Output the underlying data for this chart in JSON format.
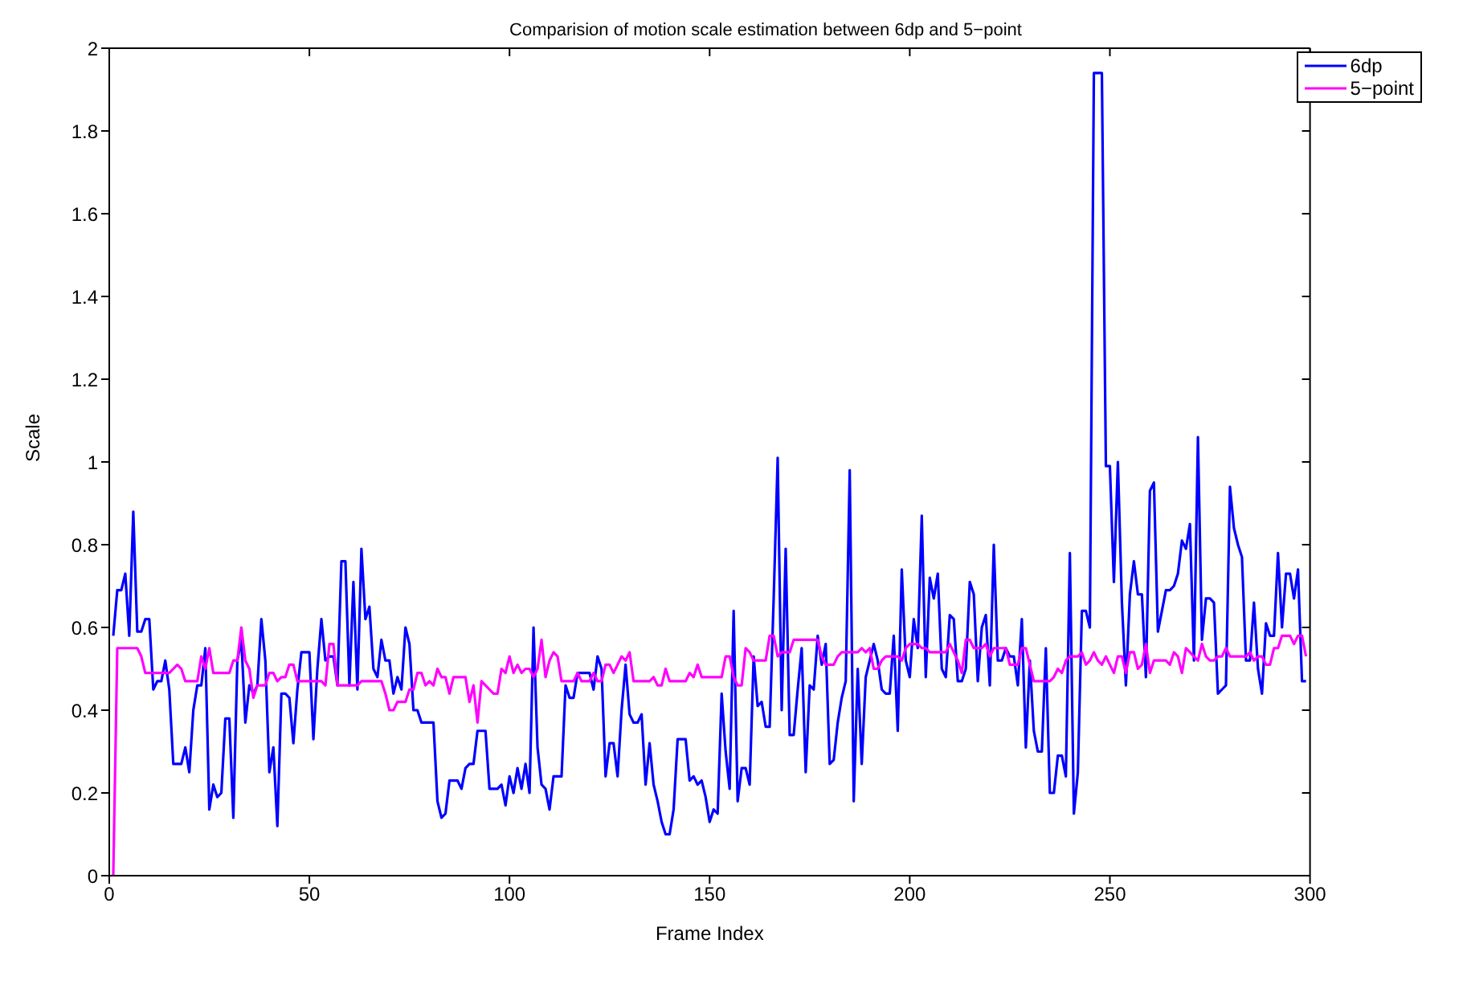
{
  "chart_data": {
    "type": "line",
    "title": "Comparision of motion scale estimation between 6dp and 5−point",
    "xlabel": "Frame Index",
    "ylabel": "Scale",
    "xlim": [
      0,
      300
    ],
    "xticks": [
      0,
      50,
      100,
      150,
      200,
      250,
      300
    ],
    "ylim": [
      0,
      2
    ],
    "yticks": [
      0,
      0.2,
      0.4,
      0.6,
      0.8,
      1,
      1.2,
      1.4,
      1.6,
      1.8,
      2
    ],
    "legend": "top right",
    "marker": "none",
    "line_style": "solid",
    "x": [
      1,
      2,
      3,
      4,
      5,
      6,
      7,
      8,
      9,
      10,
      11,
      12,
      13,
      14,
      15,
      16,
      17,
      18,
      19,
      20,
      21,
      22,
      23,
      24,
      25,
      26,
      27,
      28,
      29,
      30,
      31,
      32,
      33,
      34,
      35,
      36,
      37,
      38,
      39,
      40,
      41,
      42,
      43,
      44,
      45,
      46,
      47,
      48,
      49,
      50,
      51,
      52,
      53,
      54,
      55,
      56,
      57,
      58,
      59,
      60,
      61,
      62,
      63,
      64,
      65,
      66,
      67,
      68,
      69,
      70,
      71,
      72,
      73,
      74,
      75,
      76,
      77,
      78,
      79,
      80,
      81,
      82,
      83,
      84,
      85,
      86,
      87,
      88,
      89,
      90,
      91,
      92,
      93,
      94,
      95,
      96,
      97,
      98,
      99,
      100,
      101,
      102,
      103,
      104,
      105,
      106,
      107,
      108,
      109,
      110,
      111,
      112,
      113,
      114,
      115,
      116,
      117,
      118,
      119,
      120,
      121,
      122,
      123,
      124,
      125,
      126,
      127,
      128,
      129,
      130,
      131,
      132,
      133,
      134,
      135,
      136,
      137,
      138,
      139,
      140,
      141,
      142,
      143,
      144,
      145,
      146,
      147,
      148,
      149,
      150,
      151,
      152,
      153,
      154,
      155,
      156,
      157,
      158,
      159,
      160,
      161,
      162,
      163,
      164,
      165,
      166,
      167,
      168,
      169,
      170,
      171,
      172,
      173,
      174,
      175,
      176,
      177,
      178,
      179,
      180,
      181,
      182,
      183,
      184,
      185,
      186,
      187,
      188,
      189,
      190,
      191,
      192,
      193,
      194,
      195,
      196,
      197,
      198,
      199,
      200,
      201,
      202,
      203,
      204,
      205,
      206,
      207,
      208,
      209,
      210,
      211,
      212,
      213,
      214,
      215,
      216,
      217,
      218,
      219,
      220,
      221,
      222,
      223,
      224,
      225,
      226,
      227,
      228,
      229,
      230,
      231,
      232,
      233,
      234,
      235,
      236,
      237,
      238,
      239,
      240,
      241,
      242,
      243,
      244,
      245,
      246,
      247,
      248,
      249,
      250,
      251,
      252,
      253,
      254,
      255,
      256,
      257,
      258,
      259,
      260,
      261,
      262,
      263,
      264,
      265,
      266,
      267,
      268,
      269,
      270,
      271,
      272,
      273,
      274,
      275,
      276,
      277,
      278,
      279,
      280,
      281,
      282,
      283,
      284,
      285,
      286,
      287,
      288,
      289,
      290,
      291,
      292,
      293,
      294,
      295,
      296,
      297,
      298,
      299
    ],
    "series": [
      {
        "name": "6dp",
        "color": "#0000ff",
        "values": [
          0.58,
          0.69,
          0.69,
          0.73,
          0.58,
          0.88,
          0.59,
          0.59,
          0.62,
          0.62,
          0.45,
          0.47,
          0.47,
          0.52,
          0.45,
          0.27,
          0.27,
          0.27,
          0.31,
          0.25,
          0.4,
          0.46,
          0.46,
          0.55,
          0.16,
          0.22,
          0.19,
          0.2,
          0.38,
          0.38,
          0.14,
          0.52,
          0.57,
          0.37,
          0.46,
          0.44,
          0.46,
          0.62,
          0.52,
          0.25,
          0.31,
          0.12,
          0.44,
          0.44,
          0.43,
          0.32,
          0.45,
          0.54,
          0.54,
          0.54,
          0.33,
          0.5,
          0.62,
          0.52,
          0.53,
          0.53,
          0.46,
          0.76,
          0.76,
          0.46,
          0.71,
          0.45,
          0.79,
          0.62,
          0.65,
          0.5,
          0.48,
          0.57,
          0.52,
          0.52,
          0.44,
          0.48,
          0.45,
          0.6,
          0.56,
          0.4,
          0.4,
          0.37,
          0.37,
          0.37,
          0.37,
          0.18,
          0.14,
          0.15,
          0.23,
          0.23,
          0.23,
          0.21,
          0.26,
          0.27,
          0.27,
          0.35,
          0.35,
          0.35,
          0.21,
          0.21,
          0.21,
          0.22,
          0.17,
          0.24,
          0.2,
          0.26,
          0.21,
          0.27,
          0.2,
          0.6,
          0.31,
          0.22,
          0.21,
          0.16,
          0.24,
          0.24,
          0.24,
          0.46,
          0.43,
          0.43,
          0.49,
          0.49,
          0.49,
          0.49,
          0.45,
          0.53,
          0.5,
          0.24,
          0.32,
          0.32,
          0.24,
          0.4,
          0.51,
          0.39,
          0.37,
          0.37,
          0.39,
          0.22,
          0.32,
          0.22,
          0.18,
          0.13,
          0.1,
          0.1,
          0.16,
          0.33,
          0.33,
          0.33,
          0.23,
          0.24,
          0.22,
          0.23,
          0.19,
          0.13,
          0.16,
          0.15,
          0.44,
          0.3,
          0.21,
          0.64,
          0.18,
          0.26,
          0.26,
          0.22,
          0.53,
          0.41,
          0.42,
          0.36,
          0.36,
          0.67,
          1.01,
          0.4,
          0.79,
          0.34,
          0.34,
          0.45,
          0.55,
          0.25,
          0.46,
          0.45,
          0.58,
          0.51,
          0.56,
          0.27,
          0.28,
          0.37,
          0.43,
          0.47,
          0.98,
          0.18,
          0.5,
          0.27,
          0.48,
          0.52,
          0.56,
          0.52,
          0.45,
          0.44,
          0.44,
          0.58,
          0.35,
          0.74,
          0.52,
          0.48,
          0.62,
          0.55,
          0.87,
          0.48,
          0.72,
          0.67,
          0.73,
          0.5,
          0.48,
          0.63,
          0.62,
          0.47,
          0.47,
          0.5,
          0.71,
          0.68,
          0.47,
          0.6,
          0.63,
          0.46,
          0.8,
          0.52,
          0.52,
          0.55,
          0.53,
          0.53,
          0.46,
          0.62,
          0.31,
          0.52,
          0.35,
          0.3,
          0.3,
          0.55,
          0.2,
          0.2,
          0.29,
          0.29,
          0.24,
          0.78,
          0.15,
          0.25,
          0.64,
          0.64,
          0.6,
          1.94,
          1.94,
          1.94,
          0.99,
          0.99,
          0.71,
          1.0,
          0.66,
          0.46,
          0.68,
          0.76,
          0.68,
          0.68,
          0.48,
          0.93,
          0.95,
          0.59,
          0.64,
          0.69,
          0.69,
          0.7,
          0.73,
          0.81,
          0.79,
          0.85,
          0.52,
          1.06,
          0.57,
          0.67,
          0.67,
          0.66,
          0.44,
          0.45,
          0.46,
          0.94,
          0.84,
          0.8,
          0.77,
          0.52,
          0.52,
          0.66,
          0.5,
          0.44,
          0.61,
          0.58,
          0.58,
          0.78,
          0.6,
          0.73,
          0.73,
          0.67,
          0.74,
          0.47,
          0.47
        ]
      },
      {
        "name": "5−point",
        "color": "#ff00ff",
        "values": [
          0,
          0.55,
          0.55,
          0.55,
          0.55,
          0.55,
          0.55,
          0.53,
          0.49,
          0.49,
          0.49,
          0.49,
          0.49,
          0.49,
          0.49,
          0.5,
          0.51,
          0.5,
          0.47,
          0.47,
          0.47,
          0.47,
          0.53,
          0.5,
          0.55,
          0.49,
          0.49,
          0.49,
          0.49,
          0.49,
          0.52,
          0.52,
          0.6,
          0.52,
          0.5,
          0.43,
          0.46,
          0.46,
          0.46,
          0.49,
          0.49,
          0.47,
          0.48,
          0.48,
          0.51,
          0.51,
          0.47,
          0.47,
          0.47,
          0.47,
          0.47,
          0.47,
          0.47,
          0.46,
          0.56,
          0.56,
          0.46,
          0.46,
          0.46,
          0.46,
          0.46,
          0.46,
          0.47,
          0.47,
          0.47,
          0.47,
          0.47,
          0.47,
          0.44,
          0.4,
          0.4,
          0.42,
          0.42,
          0.42,
          0.45,
          0.45,
          0.49,
          0.49,
          0.46,
          0.47,
          0.46,
          0.5,
          0.48,
          0.48,
          0.44,
          0.48,
          0.48,
          0.48,
          0.48,
          0.42,
          0.46,
          0.37,
          0.47,
          0.46,
          0.45,
          0.44,
          0.44,
          0.5,
          0.49,
          0.53,
          0.49,
          0.51,
          0.49,
          0.5,
          0.5,
          0.48,
          0.5,
          0.57,
          0.48,
          0.52,
          0.54,
          0.53,
          0.47,
          0.47,
          0.47,
          0.47,
          0.49,
          0.47,
          0.47,
          0.47,
          0.49,
          0.47,
          0.47,
          0.51,
          0.51,
          0.49,
          0.51,
          0.53,
          0.52,
          0.54,
          0.47,
          0.47,
          0.47,
          0.47,
          0.47,
          0.48,
          0.46,
          0.46,
          0.5,
          0.47,
          0.47,
          0.47,
          0.47,
          0.47,
          0.49,
          0.48,
          0.51,
          0.48,
          0.48,
          0.48,
          0.48,
          0.48,
          0.48,
          0.53,
          0.53,
          0.48,
          0.46,
          0.46,
          0.55,
          0.54,
          0.52,
          0.52,
          0.52,
          0.52,
          0.58,
          0.58,
          0.53,
          0.54,
          0.54,
          0.54,
          0.57,
          0.57,
          0.57,
          0.57,
          0.57,
          0.57,
          0.57,
          0.53,
          0.51,
          0.51,
          0.51,
          0.53,
          0.54,
          0.54,
          0.54,
          0.54,
          0.54,
          0.55,
          0.54,
          0.55,
          0.5,
          0.5,
          0.52,
          0.53,
          0.53,
          0.53,
          0.53,
          0.52,
          0.55,
          0.56,
          0.56,
          0.56,
          0.55,
          0.55,
          0.54,
          0.54,
          0.54,
          0.54,
          0.54,
          0.56,
          0.54,
          0.52,
          0.49,
          0.57,
          0.57,
          0.55,
          0.55,
          0.55,
          0.56,
          0.53,
          0.55,
          0.55,
          0.55,
          0.55,
          0.51,
          0.51,
          0.51,
          0.55,
          0.55,
          0.51,
          0.47,
          0.47,
          0.47,
          0.47,
          0.47,
          0.48,
          0.5,
          0.49,
          0.52,
          0.53,
          0.53,
          0.53,
          0.54,
          0.51,
          0.52,
          0.54,
          0.52,
          0.51,
          0.53,
          0.51,
          0.49,
          0.53,
          0.53,
          0.49,
          0.54,
          0.54,
          0.5,
          0.51,
          0.56,
          0.49,
          0.52,
          0.52,
          0.52,
          0.52,
          0.51,
          0.54,
          0.53,
          0.49,
          0.55,
          0.54,
          0.53,
          0.52,
          0.56,
          0.53,
          0.52,
          0.52,
          0.53,
          0.53,
          0.55,
          0.53,
          0.53,
          0.53,
          0.53,
          0.53,
          0.54,
          0.52,
          0.53,
          0.53,
          0.51,
          0.51,
          0.55,
          0.55,
          0.58,
          0.58,
          0.58,
          0.56,
          0.58,
          0.58,
          0.53
        ]
      }
    ]
  }
}
